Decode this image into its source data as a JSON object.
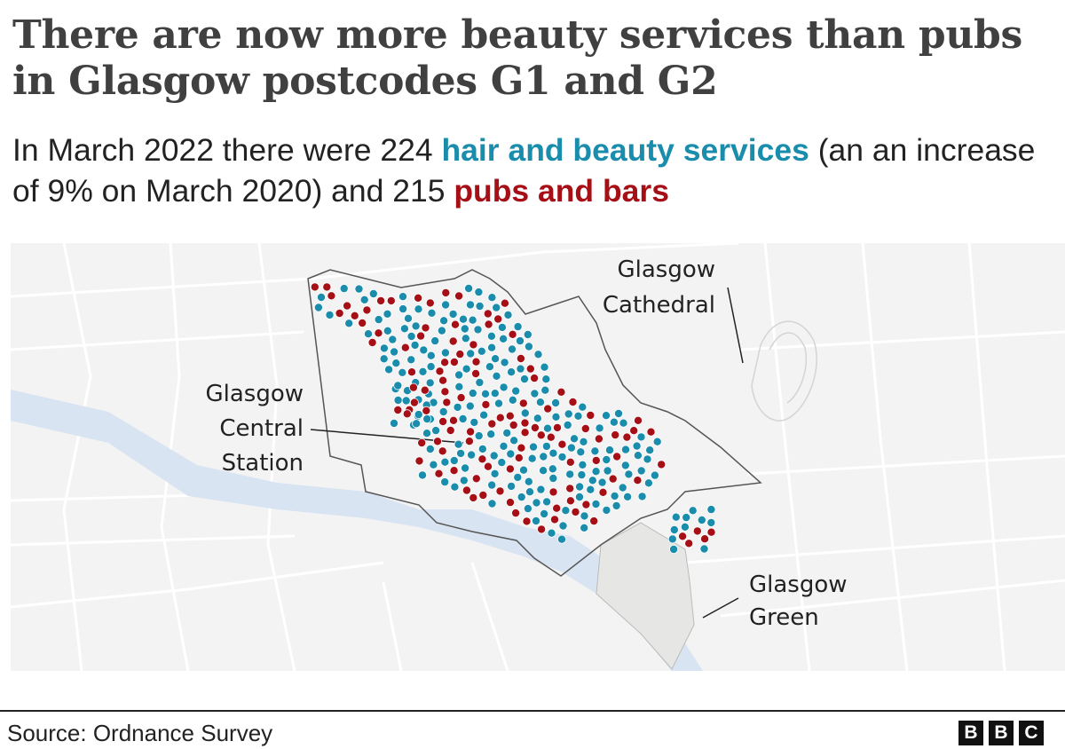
{
  "title": "There are now more beauty services than pubs in Glasgow postcodes G1 and G2",
  "subtitle": {
    "part1": "In March 2022 there were 224 ",
    "beauty_label": "hair and beauty services",
    "part2": " (an an increase of 9% on March 2020) and 215 ",
    "pubs_label": "pubs and bars"
  },
  "map": {
    "places": {
      "cathedral": [
        "Glasgow",
        "Cathedral"
      ],
      "central_station": [
        "Glasgow",
        "Central",
        "Station"
      ],
      "green": [
        "Glasgow",
        "Green"
      ]
    },
    "colors": {
      "beauty": "#1a8cac",
      "pubs": "#a50f15",
      "river": "#d8e4f2",
      "park": "#e6e6e4",
      "background": "#f3f3f3"
    },
    "counts": {
      "beauty": 224,
      "pubs": 215
    }
  },
  "footer": {
    "source": "Source: Ordnance Survey",
    "logo": [
      "B",
      "B",
      "C"
    ]
  }
}
